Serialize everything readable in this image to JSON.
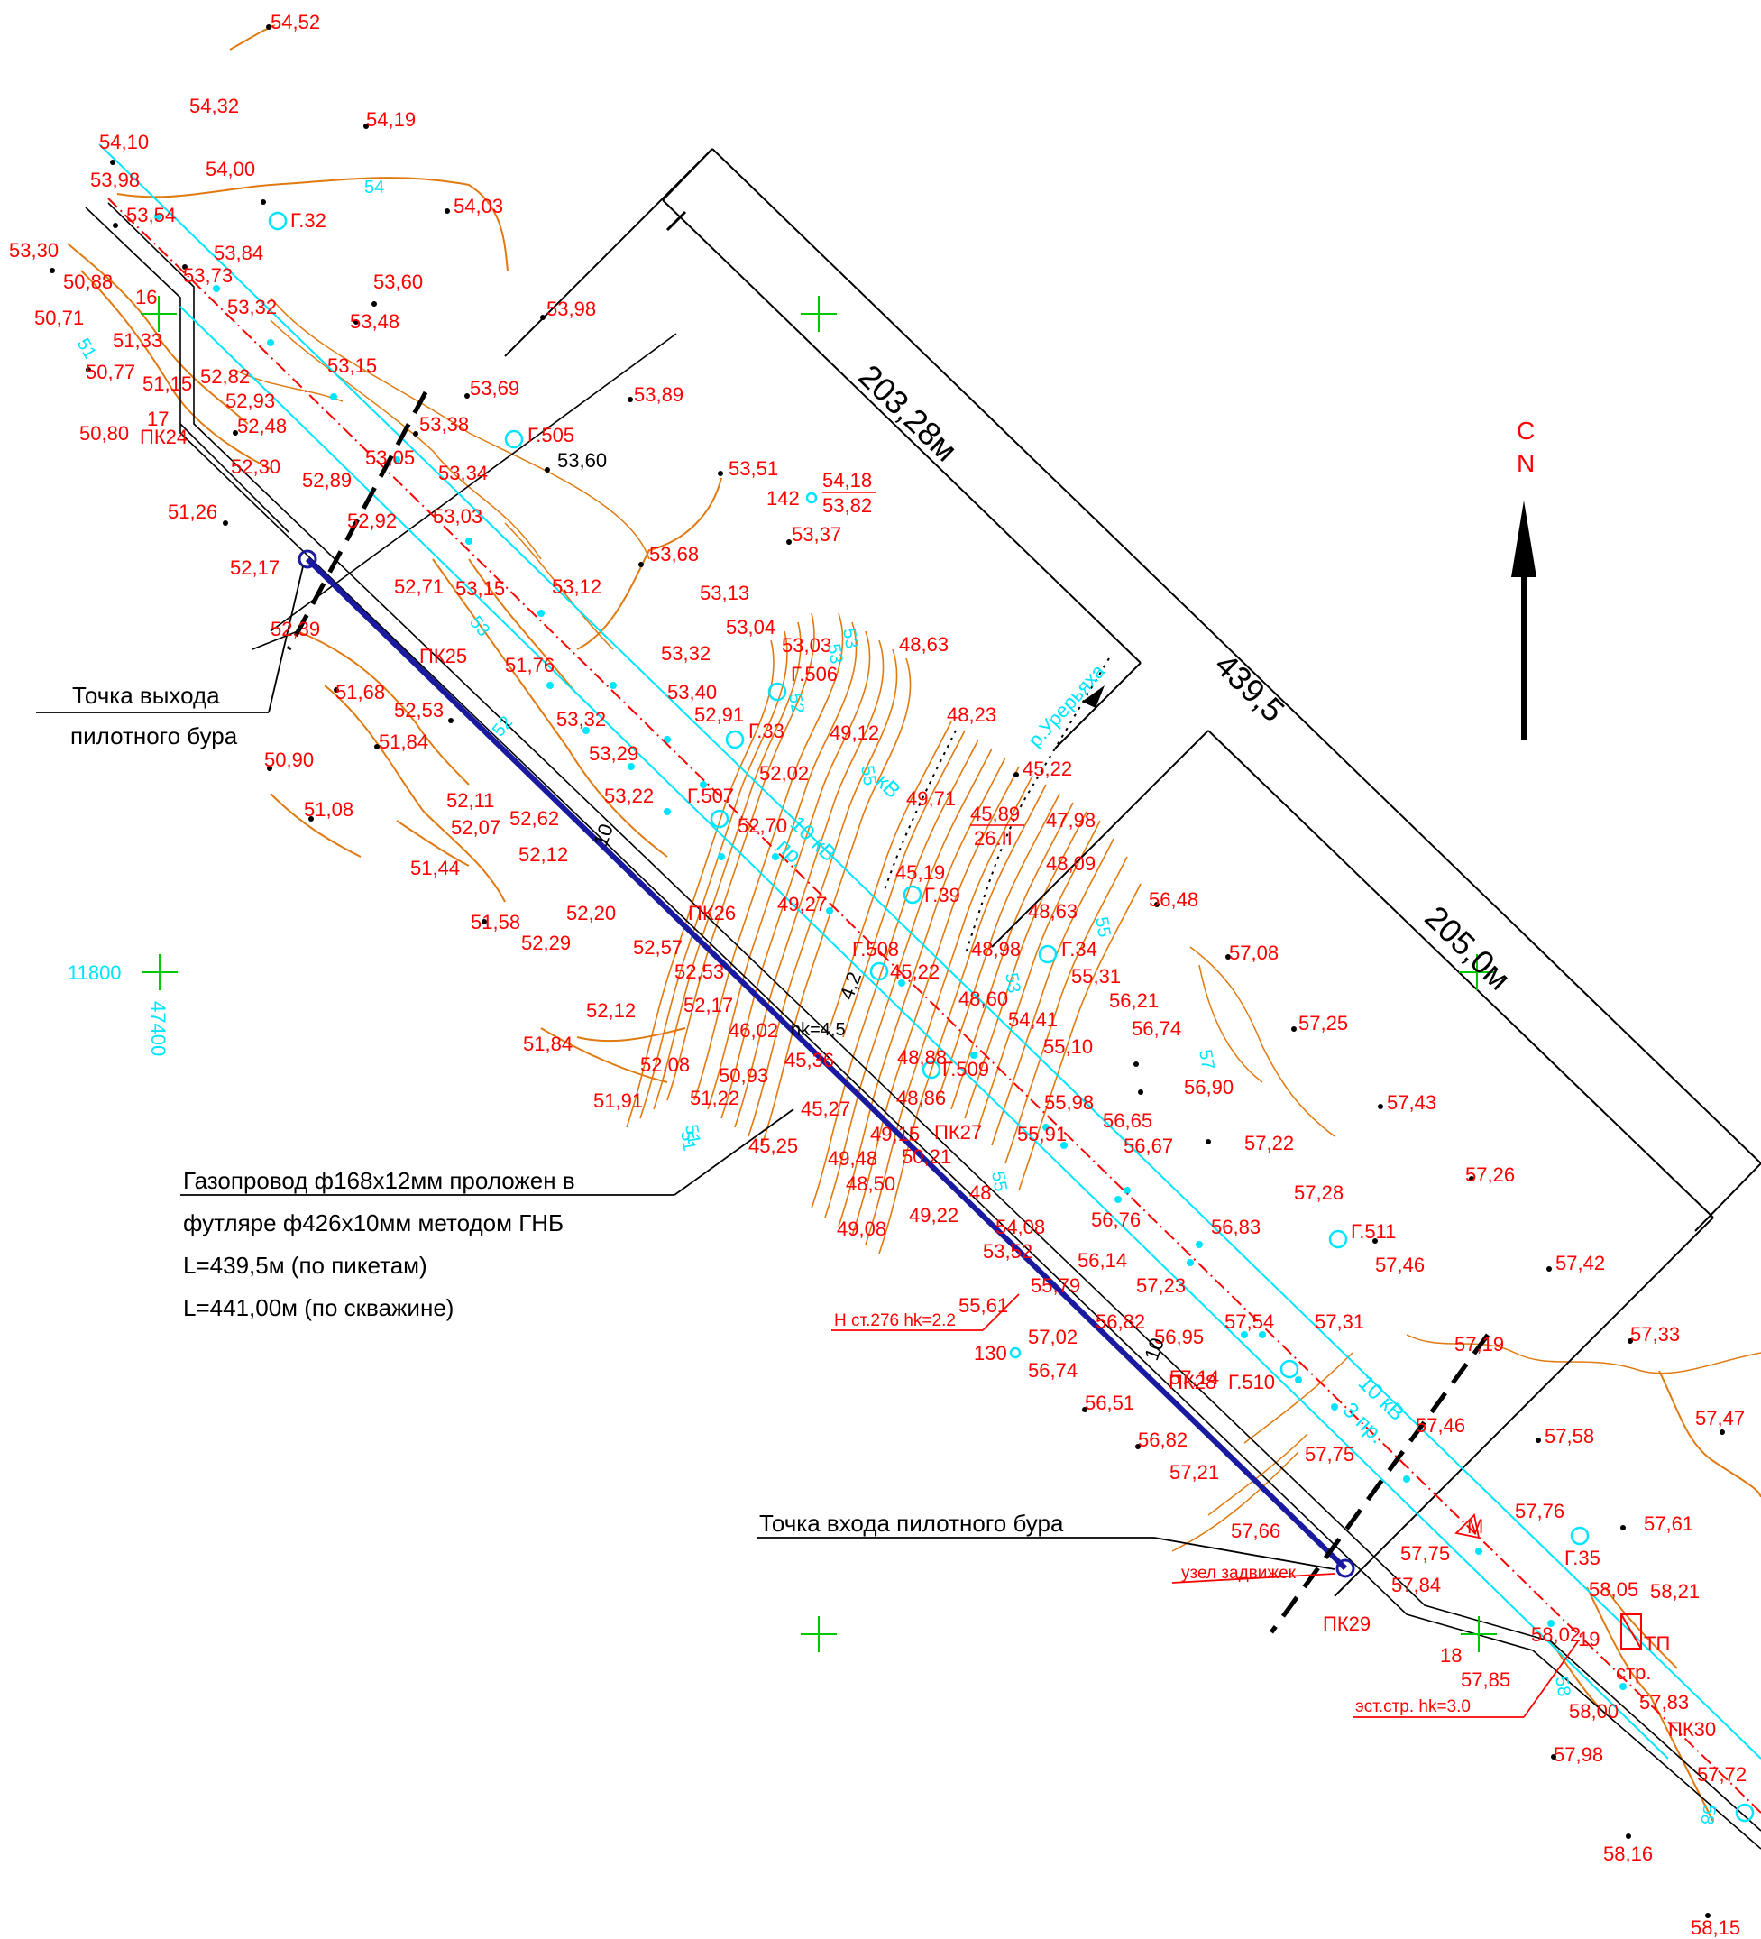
{
  "colors": {
    "elevation_text": "#ff0000",
    "contour": "#e07a10",
    "pipeline": "#1a1aa0",
    "power_line": "#00e5ff",
    "grid_cross": "#00c800",
    "dimension": "#000000"
  },
  "north_arrow": {
    "label_c": "С",
    "label_n": "N",
    "icon": "north-arrow-icon"
  },
  "dimensions": {
    "total": "439,5",
    "left": "203,28м",
    "right": "205,0м"
  },
  "river": {
    "label": "р.Урерьяха"
  },
  "grid": {
    "x_label": "11800",
    "y_label": "47400"
  },
  "annotations": {
    "exit_point_line1": "Точка выхода",
    "exit_point_line2": "пилотного бура",
    "entry_point": "Точка входа пилотного бура",
    "pipeline_line1": "Газопровод ф168х12мм проложен в",
    "pipeline_line2": "футляре ф426х10мм методом ГНБ",
    "pipeline_line3": "L=439,5м (по пикетам)",
    "pipeline_line4": "L=441,00м (по скважине)",
    "valve_node": "узел задвижек",
    "h_station": "Н ст.276 hk=2.2",
    "el_station": "эст.стр. hk=3.0",
    "hk_45": "hk=4,5",
    "tp": "ТП",
    "str": "стр.",
    "m_label": "М",
    "date_note": "26.II",
    "h_4589": "45,89"
  },
  "pickets": [
    "ПК24",
    "ПК25",
    "ПК26",
    "ПК27",
    "ПК28",
    "ПК29",
    "ПК30"
  ],
  "wells": [
    "Г.32",
    "Г.505",
    "Г.506",
    "Г.33",
    "Г.507",
    "Г.39",
    "Г.508",
    "Г.34",
    "Г.509",
    "Г.511",
    "Г.510",
    "Г.35"
  ],
  "power_labels": [
    "10 кВ",
    "10 кВ",
    "кВ",
    "3 пр.",
    "пр."
  ],
  "contour_labels": [
    "54",
    "51",
    "53",
    "52",
    "53",
    "52",
    "51",
    "55",
    "57",
    "55",
    "58",
    "58",
    "51",
    "55",
    "53",
    "53"
  ],
  "misc_numbers": [
    "16",
    "17",
    "142",
    "130",
    "18",
    "19",
    "10",
    "10",
    "4,2"
  ],
  "elevations": [
    "54,52",
    "54,32",
    "54,19",
    "54,10",
    "53,98",
    "54,00",
    "54,03",
    "53,54",
    "53,30",
    "53,73",
    "53,84",
    "50,88",
    "53,60",
    "50,71",
    "53,32",
    "53,48",
    "51,33",
    "53,98",
    "53,15",
    "50,77",
    "52,82",
    "51,15",
    "52,93",
    "53,69",
    "53,89",
    "50,80",
    "52,48",
    "53,38",
    "52,30",
    "53,05",
    "52,89",
    "53,34",
    "53,60",
    "53,51",
    "54,18",
    "53,82",
    "51,26",
    "52,92",
    "53,03",
    "53,37",
    "52,17",
    "53,68",
    "52,71",
    "53,15",
    "53,12",
    "52,39",
    "53,13",
    "53,04",
    "53,03",
    "48,63",
    "53,32",
    "51,76",
    "51,68",
    "52,53",
    "53,40",
    "52,91",
    "48,23",
    "53,32",
    "51,84",
    "53,29",
    "49,12",
    "45,22",
    "50,90",
    "52,02",
    "49,71",
    "53,22",
    "52,11",
    "51,08",
    "52,07",
    "52,62",
    "52,70",
    "47,98",
    "52,12",
    "48,09",
    "45,19",
    "51,44",
    "56,48",
    "49,27",
    "48,63",
    "51,58",
    "52,20",
    "57,08",
    "52,29",
    "52,57",
    "48,98",
    "55,31",
    "52,53",
    "45,22",
    "56,21",
    "52,12",
    "52,17",
    "48,60",
    "54,41",
    "56,74",
    "57,25",
    "46,02",
    "51,84",
    "55,10",
    "45,36",
    "48,88",
    "52,08",
    "50,93",
    "56,90",
    "51,91",
    "51,22",
    "48,86",
    "55,98",
    "57,43",
    "45,27",
    "56,65",
    "49,15",
    "55,91",
    "56,67",
    "45,25",
    "49,48",
    "50,21",
    "57,22",
    "57,26",
    "48,50",
    "48",
    "57,28",
    "49,08",
    "49,22",
    "56,76",
    "54,08",
    "56,83",
    "53,52",
    "56,14",
    "57,46",
    "57,42",
    "57,23",
    "55,79",
    "55,61",
    "56,82",
    "57,54",
    "57,31",
    "57,33",
    "57,02",
    "56,95",
    "57,19",
    "56,74",
    "57,14",
    "56,51",
    "57,47",
    "57,46",
    "56,82",
    "57,58",
    "57,75",
    "57,21",
    "57,76",
    "57,66",
    "57,61",
    "57,75",
    "58,05",
    "58,21",
    "57,84",
    "58,02",
    "57,85",
    "58,00",
    "57,83",
    "57,98",
    "57,72",
    "58,16",
    "58,15"
  ]
}
